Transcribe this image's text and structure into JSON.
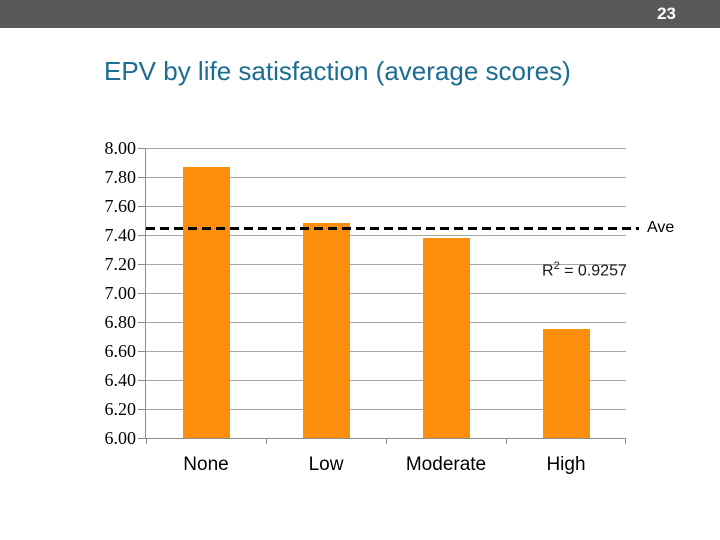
{
  "header": {
    "page_number": "23"
  },
  "title": "EPV by life satisfaction (average scores)",
  "chart_data": {
    "type": "bar",
    "title": "EPV by life satisfaction (average scores)",
    "categories": [
      "None",
      "Low",
      "Moderate",
      "High"
    ],
    "values": [
      7.87,
      7.48,
      7.38,
      6.75
    ],
    "xlabel": "",
    "ylabel": "",
    "ylim": [
      6.0,
      8.0
    ],
    "y_tick_step": 0.2,
    "y_tick_labels": [
      "8.00",
      "7.80",
      "7.60",
      "7.40",
      "7.20",
      "7.00",
      "6.80",
      "6.60",
      "6.40",
      "6.20",
      "6.00"
    ],
    "grid": true,
    "legend": false,
    "reference_line": {
      "value": 7.45,
      "label": "Ave",
      "style": "dashed"
    },
    "annotation": {
      "prefix": "R",
      "sup": "2",
      "suffix": " = 0.9257"
    }
  },
  "colors": {
    "header_bg": "#595959",
    "page_number_text": "#FFFFFF",
    "title_text": "#1C6C93",
    "bar": "#FB8E0D",
    "gridline": "#A6A6A6",
    "axis": "#8C8C8C",
    "reference_line": "#000000"
  }
}
